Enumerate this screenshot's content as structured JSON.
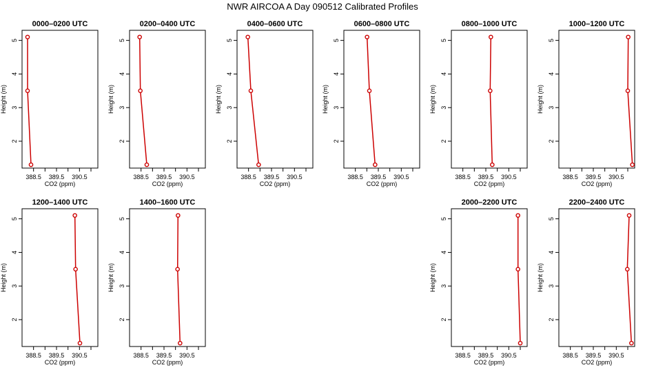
{
  "figure_title": "NWR AIRCOA A  Day 090512  Calibrated Profiles",
  "colors": {
    "line": "#cc0000",
    "point": "#cc0000",
    "axis": "#000000"
  },
  "chart_data": [
    {
      "type": "line",
      "title": "0000–0200 UTC",
      "xlabel": "CO2 (ppm)",
      "ylabel": "Height (m)",
      "xlim": [
        388.0,
        391.3
      ],
      "ylim": [
        1.2,
        5.3
      ],
      "xticks": [
        388.5,
        389.0,
        389.5,
        390.0,
        390.5,
        391.0
      ],
      "xtick_labels": [
        "388.5",
        "",
        "389.5",
        "",
        "390.5",
        ""
      ],
      "yticks": [
        2,
        3,
        4,
        5
      ],
      "ytick_labels": [
        "2",
        "3",
        "4",
        "5"
      ],
      "points": [
        {
          "x": 388.24,
          "y": 5.1
        },
        {
          "x": 388.24,
          "y": 3.5
        },
        {
          "x": 388.39,
          "y": 1.3
        }
      ]
    },
    {
      "type": "line",
      "title": "0200–0400 UTC",
      "xlabel": "CO2 (ppm)",
      "ylabel": "Height (m)",
      "xlim": [
        388.0,
        391.3
      ],
      "ylim": [
        1.2,
        5.3
      ],
      "xticks": [
        388.5,
        389.0,
        389.5,
        390.0,
        390.5,
        391.0
      ],
      "xtick_labels": [
        "388.5",
        "",
        "389.5",
        "",
        "390.5",
        ""
      ],
      "yticks": [
        2,
        3,
        4,
        5
      ],
      "ytick_labels": [
        "2",
        "3",
        "4",
        "5"
      ],
      "points": [
        {
          "x": 388.44,
          "y": 5.1
        },
        {
          "x": 388.47,
          "y": 3.5
        },
        {
          "x": 388.75,
          "y": 1.3
        }
      ]
    },
    {
      "type": "line",
      "title": "0400–0600 UTC",
      "xlabel": "CO2 (ppm)",
      "ylabel": "Height (m)",
      "xlim": [
        388.0,
        391.3
      ],
      "ylim": [
        1.2,
        5.3
      ],
      "xticks": [
        388.5,
        389.0,
        389.5,
        390.0,
        390.5,
        391.0
      ],
      "xtick_labels": [
        "388.5",
        "",
        "389.5",
        "",
        "390.5",
        ""
      ],
      "yticks": [
        2,
        3,
        4,
        5
      ],
      "ytick_labels": [
        "2",
        "3",
        "4",
        "5"
      ],
      "points": [
        {
          "x": 388.47,
          "y": 5.1
        },
        {
          "x": 388.6,
          "y": 3.5
        },
        {
          "x": 388.94,
          "y": 1.3
        }
      ]
    },
    {
      "type": "line",
      "title": "0600–0800 UTC",
      "xlabel": "CO2 (ppm)",
      "ylabel": "Height (m)",
      "xlim": [
        388.0,
        391.3
      ],
      "ylim": [
        1.2,
        5.3
      ],
      "xticks": [
        388.5,
        389.0,
        389.5,
        390.0,
        390.5,
        391.0
      ],
      "xtick_labels": [
        "388.5",
        "",
        "389.5",
        "",
        "390.5",
        ""
      ],
      "yticks": [
        2,
        3,
        4,
        5
      ],
      "ytick_labels": [
        "2",
        "3",
        "4",
        "5"
      ],
      "points": [
        {
          "x": 389.01,
          "y": 5.1
        },
        {
          "x": 389.11,
          "y": 3.5
        },
        {
          "x": 389.36,
          "y": 1.3
        }
      ]
    },
    {
      "type": "line",
      "title": "0800–1000 UTC",
      "xlabel": "CO2 (ppm)",
      "ylabel": "Height (m)",
      "xlim": [
        388.0,
        391.3
      ],
      "ylim": [
        1.2,
        5.3
      ],
      "xticks": [
        388.5,
        389.0,
        389.5,
        390.0,
        390.5,
        391.0
      ],
      "xtick_labels": [
        "388.5",
        "",
        "389.5",
        "",
        "390.5",
        ""
      ],
      "yticks": [
        2,
        3,
        4,
        5
      ],
      "ytick_labels": [
        "2",
        "3",
        "4",
        "5"
      ],
      "points": [
        {
          "x": 389.72,
          "y": 5.1
        },
        {
          "x": 389.69,
          "y": 3.5
        },
        {
          "x": 389.78,
          "y": 1.3
        }
      ]
    },
    {
      "type": "line",
      "title": "1000–1200 UTC",
      "xlabel": "CO2 (ppm)",
      "ylabel": "Height (m)",
      "xlim": [
        388.0,
        391.3
      ],
      "ylim": [
        1.2,
        5.3
      ],
      "xticks": [
        388.5,
        389.0,
        389.5,
        390.0,
        390.5,
        391.0
      ],
      "xtick_labels": [
        "388.5",
        "",
        "389.5",
        "",
        "390.5",
        ""
      ],
      "yticks": [
        2,
        3,
        4,
        5
      ],
      "ytick_labels": [
        "2",
        "3",
        "4",
        "5"
      ],
      "points": [
        {
          "x": 391.02,
          "y": 5.1
        },
        {
          "x": 391.0,
          "y": 3.5
        },
        {
          "x": 391.2,
          "y": 1.3
        }
      ]
    },
    {
      "type": "line",
      "title": "1200–1400 UTC",
      "xlabel": "CO2 (ppm)",
      "ylabel": "Height (m)",
      "xlim": [
        388.0,
        391.3
      ],
      "ylim": [
        1.2,
        5.3
      ],
      "xticks": [
        388.5,
        389.0,
        389.5,
        390.0,
        390.5,
        391.0
      ],
      "xtick_labels": [
        "388.5",
        "",
        "389.5",
        "",
        "390.5",
        ""
      ],
      "yticks": [
        2,
        3,
        4,
        5
      ],
      "ytick_labels": [
        "2",
        "3",
        "4",
        "5"
      ],
      "points": [
        {
          "x": 390.3,
          "y": 5.1
        },
        {
          "x": 390.33,
          "y": 3.5
        },
        {
          "x": 390.52,
          "y": 1.3
        }
      ]
    },
    {
      "type": "line",
      "title": "1400–1600 UTC",
      "xlabel": "CO2 (ppm)",
      "ylabel": "Height (m)",
      "xlim": [
        388.0,
        391.3
      ],
      "ylim": [
        1.2,
        5.3
      ],
      "xticks": [
        388.5,
        389.0,
        389.5,
        390.0,
        390.5,
        391.0
      ],
      "xtick_labels": [
        "388.5",
        "",
        "389.5",
        "",
        "390.5",
        ""
      ],
      "yticks": [
        2,
        3,
        4,
        5
      ],
      "ytick_labels": [
        "2",
        "3",
        "4",
        "5"
      ],
      "points": [
        {
          "x": 390.11,
          "y": 5.1
        },
        {
          "x": 390.09,
          "y": 3.5
        },
        {
          "x": 390.2,
          "y": 1.3
        }
      ]
    },
    {
      "type": "line",
      "title": "2000–2200 UTC",
      "xlabel": "CO2 (ppm)",
      "ylabel": "Height (m)",
      "xlim": [
        388.0,
        391.3
      ],
      "ylim": [
        1.2,
        5.3
      ],
      "xticks": [
        388.5,
        389.0,
        389.5,
        390.0,
        390.5,
        391.0
      ],
      "xtick_labels": [
        "388.5",
        "",
        "389.5",
        "",
        "390.5",
        ""
      ],
      "yticks": [
        2,
        3,
        4,
        5
      ],
      "ytick_labels": [
        "2",
        "3",
        "4",
        "5"
      ],
      "points": [
        {
          "x": 390.9,
          "y": 5.1
        },
        {
          "x": 390.9,
          "y": 3.5
        },
        {
          "x": 391.0,
          "y": 1.3
        }
      ]
    },
    {
      "type": "line",
      "title": "2200–2400 UTC",
      "xlabel": "CO2 (ppm)",
      "ylabel": "Height (m)",
      "xlim": [
        388.0,
        391.3
      ],
      "ylim": [
        1.2,
        5.3
      ],
      "xticks": [
        388.5,
        389.0,
        389.5,
        390.0,
        390.5,
        391.0
      ],
      "xtick_labels": [
        "388.5",
        "",
        "389.5",
        "",
        "390.5",
        ""
      ],
      "yticks": [
        2,
        3,
        4,
        5
      ],
      "ytick_labels": [
        "2",
        "3",
        "4",
        "5"
      ],
      "points": [
        {
          "x": 391.06,
          "y": 5.1
        },
        {
          "x": 390.98,
          "y": 3.5
        },
        {
          "x": 391.16,
          "y": 1.3
        }
      ]
    }
  ]
}
